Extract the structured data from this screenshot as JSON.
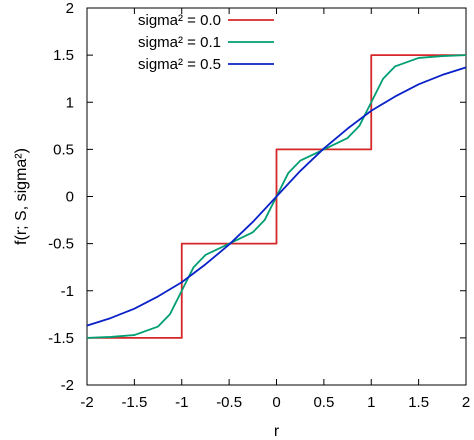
{
  "chart_data": {
    "type": "line",
    "xlabel": "r",
    "ylabel": "f(r; S, sigma²)",
    "xlim": [
      -2,
      2
    ],
    "ylim": [
      -2,
      2
    ],
    "x_ticks": [
      "-2",
      "-1.5",
      "-1",
      "-0.5",
      "0",
      "0.5",
      "1",
      "1.5",
      "2"
    ],
    "y_ticks": [
      "-2",
      "-1.5",
      "-1",
      "-0.5",
      "0",
      "0.5",
      "1",
      "1.5",
      "2"
    ],
    "grid": false,
    "legend_position": "top-left",
    "series": [
      {
        "name": "sigma² = 0.0",
        "color": "#d62728",
        "x": [
          -2,
          -1,
          -1,
          0,
          0,
          1,
          1,
          2
        ],
        "y": [
          -1.5,
          -1.5,
          -0.5,
          -0.5,
          0.5,
          0.5,
          1.5,
          1.5
        ]
      },
      {
        "name": "sigma² = 0.1",
        "color": "#009e73",
        "x": [
          -2,
          -1.75,
          -1.5,
          -1.25,
          -1.125,
          -1,
          -0.875,
          -0.75,
          -0.5,
          -0.25,
          -0.125,
          0,
          0.125,
          0.25,
          0.5,
          0.75,
          0.875,
          1,
          1.125,
          1.25,
          1.5,
          1.75,
          2
        ],
        "y": [
          -1.5,
          -1.49,
          -1.47,
          -1.38,
          -1.25,
          -1.0,
          -0.75,
          -0.62,
          -0.5,
          -0.38,
          -0.25,
          0.0,
          0.25,
          0.38,
          0.5,
          0.62,
          0.75,
          1.0,
          1.25,
          1.38,
          1.47,
          1.49,
          1.5
        ]
      },
      {
        "name": "sigma² = 0.5",
        "color": "#0a22c8",
        "x": [
          -2,
          -1.75,
          -1.5,
          -1.25,
          -1,
          -0.75,
          -0.5,
          -0.25,
          0,
          0.25,
          0.5,
          0.75,
          1,
          1.25,
          1.5,
          1.75,
          2
        ],
        "y": [
          -1.37,
          -1.29,
          -1.19,
          -1.06,
          -0.91,
          -0.72,
          -0.51,
          -0.27,
          0.0,
          0.27,
          0.51,
          0.72,
          0.91,
          1.06,
          1.19,
          1.29,
          1.37
        ]
      }
    ]
  }
}
